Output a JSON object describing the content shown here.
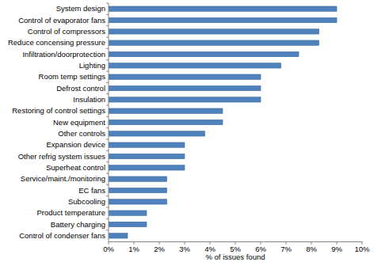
{
  "chart_data": {
    "type": "bar",
    "orientation": "horizontal",
    "categories": [
      "System design",
      "Control of evaporator fans",
      "Control of compressors",
      "Reduce concensing pressure",
      "Infiltration/doorprotection",
      "Lighting",
      "Room temp settings",
      "Defrost control",
      "Insulation",
      "Restoring of control settings",
      "New equipment",
      "Other controls",
      "Expansion device",
      "Other refrig system issues",
      "Superheat control",
      "Service/maint./monitoring",
      "EC fans",
      "Subcooling",
      "Product temperature",
      "Battery charging",
      "Control of condenser fans"
    ],
    "values": [
      9.0,
      9.0,
      8.3,
      8.3,
      7.5,
      6.8,
      6.0,
      6.0,
      6.0,
      4.5,
      4.5,
      3.8,
      3.0,
      3.0,
      3.0,
      2.3,
      2.3,
      2.3,
      1.5,
      1.5,
      0.75
    ],
    "color": "#4f81bd",
    "x_label": "% of issues found",
    "xlim": [
      0,
      10
    ],
    "xticks": [
      {
        "value": 0,
        "label": "0%"
      },
      {
        "value": 1,
        "label": "1%"
      },
      {
        "value": 2,
        "label": "2%"
      },
      {
        "value": 3,
        "label": "3%"
      },
      {
        "value": 4,
        "label": "4%"
      },
      {
        "value": 5,
        "label": "5%"
      },
      {
        "value": 6,
        "label": "6%"
      },
      {
        "value": 7,
        "label": "7%"
      },
      {
        "value": 8,
        "label": "8%"
      },
      {
        "value": 9,
        "label": "9%"
      },
      {
        "value": 10,
        "label": "10%"
      }
    ],
    "grid": false
  }
}
